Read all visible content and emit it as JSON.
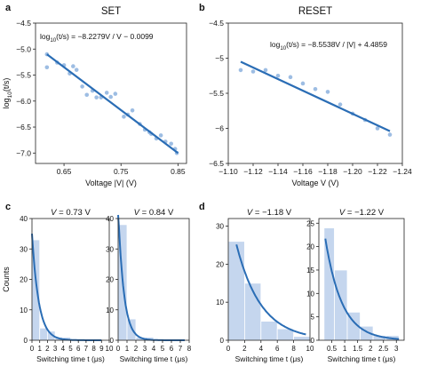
{
  "colors": {
    "point": "#9dbde3",
    "fit": "#2a6db5",
    "bar": "#c5d6ee",
    "bar_edge": "#ffffff",
    "axis": "#222222"
  },
  "panel_labels": [
    "a",
    "b",
    "c",
    "d"
  ],
  "chart_data": [
    {
      "id": "a",
      "type": "scatter",
      "title": "SET",
      "xlabel": "Voltage |V| (V)",
      "ylabel": "log10(t/s)",
      "equation": "log10(t/s) = −8.2279V / V − 0.0099",
      "xlim": [
        0.6,
        0.865
      ],
      "ylim": [
        -7.2,
        -4.5
      ],
      "xticks": [
        0.65,
        0.75,
        0.85
      ],
      "xtick_labels": [
        "0.65",
        "0.75",
        "0.85"
      ],
      "yticks": [
        -4.5,
        -5.0,
        -5.5,
        -6.0,
        -6.5,
        -7.0
      ],
      "ytick_labels": [
        "−4.5",
        "−5.0",
        "−5.5",
        "−6.0",
        "−6.5",
        "−7.0"
      ],
      "x": [
        0.62,
        0.62,
        0.638,
        0.65,
        0.66,
        0.666,
        0.672,
        0.682,
        0.69,
        0.7,
        0.707,
        0.715,
        0.725,
        0.732,
        0.74,
        0.755,
        0.762,
        0.77,
        0.783,
        0.792,
        0.8,
        0.803,
        0.812,
        0.82,
        0.828,
        0.838,
        0.845,
        0.848
      ],
      "y": [
        -5.1,
        -5.35,
        -5.26,
        -5.31,
        -5.47,
        -5.33,
        -5.4,
        -5.72,
        -5.88,
        -5.8,
        -5.93,
        -5.93,
        -5.84,
        -5.92,
        -5.86,
        -6.3,
        -6.26,
        -6.18,
        -6.44,
        -6.55,
        -6.6,
        -6.63,
        -6.72,
        -6.66,
        -6.78,
        -6.82,
        -6.92,
        -7.0
      ],
      "fit": {
        "x": [
          0.62,
          0.85
        ],
        "y": [
          -5.1,
          -7.0
        ]
      }
    },
    {
      "id": "b",
      "type": "scatter",
      "title": "RESET",
      "xlabel": "Voltage V (V)",
      "ylabel": "",
      "equation": "log10(t/s) = −8.5538V / |V| + 4.4859",
      "xlim": [
        -1.1,
        -1.24
      ],
      "ylim": [
        -6.5,
        -4.5
      ],
      "xticks": [
        -1.1,
        -1.12,
        -1.14,
        -1.16,
        -1.18,
        -1.2,
        -1.22,
        -1.24
      ],
      "xtick_labels": [
        "−1.10",
        "−1.12",
        "−1.14",
        "−1.16",
        "−1.18",
        "−1.20",
        "−1.22",
        "−1.24"
      ],
      "yticks": [
        -4.5,
        -5,
        -5.5,
        -6,
        -6.5
      ],
      "ytick_labels": [
        "−4.5",
        "−5",
        "−5.5",
        "−6",
        "−6.5"
      ],
      "x": [
        -1.11,
        -1.12,
        -1.13,
        -1.14,
        -1.15,
        -1.16,
        -1.17,
        -1.18,
        -1.19,
        -1.2,
        -1.21,
        -1.22,
        -1.23
      ],
      "y": [
        -5.17,
        -5.19,
        -5.17,
        -5.25,
        -5.27,
        -5.36,
        -5.44,
        -5.48,
        -5.66,
        -5.79,
        -5.88,
        -6.0,
        -6.09
      ],
      "fit": {
        "x": [
          -1.11,
          -1.23
        ],
        "y": [
          -5.05,
          -6.04
        ]
      }
    },
    {
      "id": "c1",
      "type": "bar",
      "title": "V = 0.73 V",
      "xlabel": "Switching time t (μs)",
      "ylabel": "Counts",
      "xlim": [
        0,
        10
      ],
      "ylim": [
        0,
        40
      ],
      "xticks": [
        0,
        1,
        2,
        3,
        4,
        5,
        6,
        7,
        8,
        9,
        10
      ],
      "xtick_labels": [
        "0",
        "1",
        "2",
        "3",
        "4",
        "5",
        "6",
        "7",
        "8",
        "9",
        "10"
      ],
      "yticks": [
        0,
        10,
        20,
        30,
        40
      ],
      "ytick_labels": [
        "0",
        "10",
        "20",
        "30",
        "40"
      ],
      "bins": [
        [
          0,
          1
        ],
        [
          1,
          2
        ],
        [
          2,
          3
        ],
        [
          3,
          4
        ],
        [
          4,
          5
        ],
        [
          5,
          6
        ],
        [
          6,
          7
        ],
        [
          7,
          8
        ],
        [
          8,
          9
        ],
        [
          9,
          10
        ]
      ],
      "values": [
        33,
        4,
        3,
        1,
        1,
        0,
        0,
        0,
        0,
        0
      ],
      "fit": {
        "type": "exponential",
        "amplitude": 35,
        "rate": 1.15,
        "x_max": 9
      }
    },
    {
      "id": "c2",
      "type": "bar",
      "title": "V = 0.84 V",
      "xlabel": "Switching time t (μs)",
      "ylabel": "",
      "xlim": [
        0,
        8
      ],
      "ylim": [
        0,
        40
      ],
      "xticks": [
        0,
        1,
        2,
        3,
        4,
        5,
        6,
        7,
        8
      ],
      "xtick_labels": [
        "0",
        "1",
        "2",
        "3",
        "4",
        "5",
        "6",
        "7",
        "8"
      ],
      "yticks": [
        0,
        10,
        20,
        30,
        40
      ],
      "ytick_labels": [
        "0",
        "10",
        "20",
        "30",
        "40"
      ],
      "bins": [
        [
          0,
          1
        ],
        [
          1,
          2
        ],
        [
          2,
          3
        ],
        [
          3,
          4
        ],
        [
          4,
          5
        ],
        [
          5,
          6
        ],
        [
          6,
          7
        ],
        [
          7,
          8
        ]
      ],
      "values": [
        38,
        7,
        1,
        1,
        0,
        0,
        0,
        0
      ],
      "fit": {
        "type": "exponential",
        "amplitude": 43,
        "rate": 1.55,
        "x_max": 7.5
      }
    },
    {
      "id": "d1",
      "type": "bar",
      "title": "V = −1.18 V",
      "xlabel": "Switching time t (μs)",
      "ylabel": "",
      "xlim": [
        0,
        10
      ],
      "ylim": [
        0,
        32
      ],
      "xticks": [
        0,
        2,
        4,
        6,
        8,
        10
      ],
      "xtick_labels": [
        "0",
        "2",
        "4",
        "6",
        "8",
        "10"
      ],
      "yticks": [
        0,
        10,
        20,
        30
      ],
      "ytick_labels": [
        "0",
        "10",
        "20",
        "30"
      ],
      "bins": [
        [
          0,
          2
        ],
        [
          2,
          4
        ],
        [
          4,
          6
        ],
        [
          6,
          8
        ],
        [
          8,
          10
        ]
      ],
      "values": [
        26,
        15,
        5,
        3,
        1
      ],
      "fit": {
        "type": "exponential",
        "amplitude": 35,
        "rate": 0.33,
        "x_min": 1,
        "x_max": 9.5
      }
    },
    {
      "id": "d2",
      "type": "bar",
      "title": "V = −1.22 V",
      "xlabel": "Switching time t (μs)",
      "ylabel": "",
      "xlim": [
        0,
        3.3
      ],
      "ylim": [
        0,
        26
      ],
      "xticks": [
        0.5,
        1,
        1.5,
        2,
        2.5,
        3
      ],
      "xtick_labels": [
        "0.5",
        "1",
        "1.5",
        "2",
        "2.5",
        "3"
      ],
      "yticks": [
        0,
        5,
        10,
        15,
        20,
        25
      ],
      "ytick_labels": [
        "0",
        "5",
        "10",
        "15",
        "20",
        "25"
      ],
      "bins": [
        [
          0.2,
          0.6
        ],
        [
          0.6,
          1.1
        ],
        [
          1.1,
          1.6
        ],
        [
          1.6,
          2.1
        ],
        [
          2.1,
          2.6
        ],
        [
          2.6,
          3.1
        ]
      ],
      "values": [
        24,
        15,
        6,
        3,
        1,
        1
      ],
      "fit": {
        "type": "exponential",
        "amplitude": 32,
        "rate": 1.55,
        "x_min": 0.25,
        "x_max": 3.1
      }
    }
  ]
}
